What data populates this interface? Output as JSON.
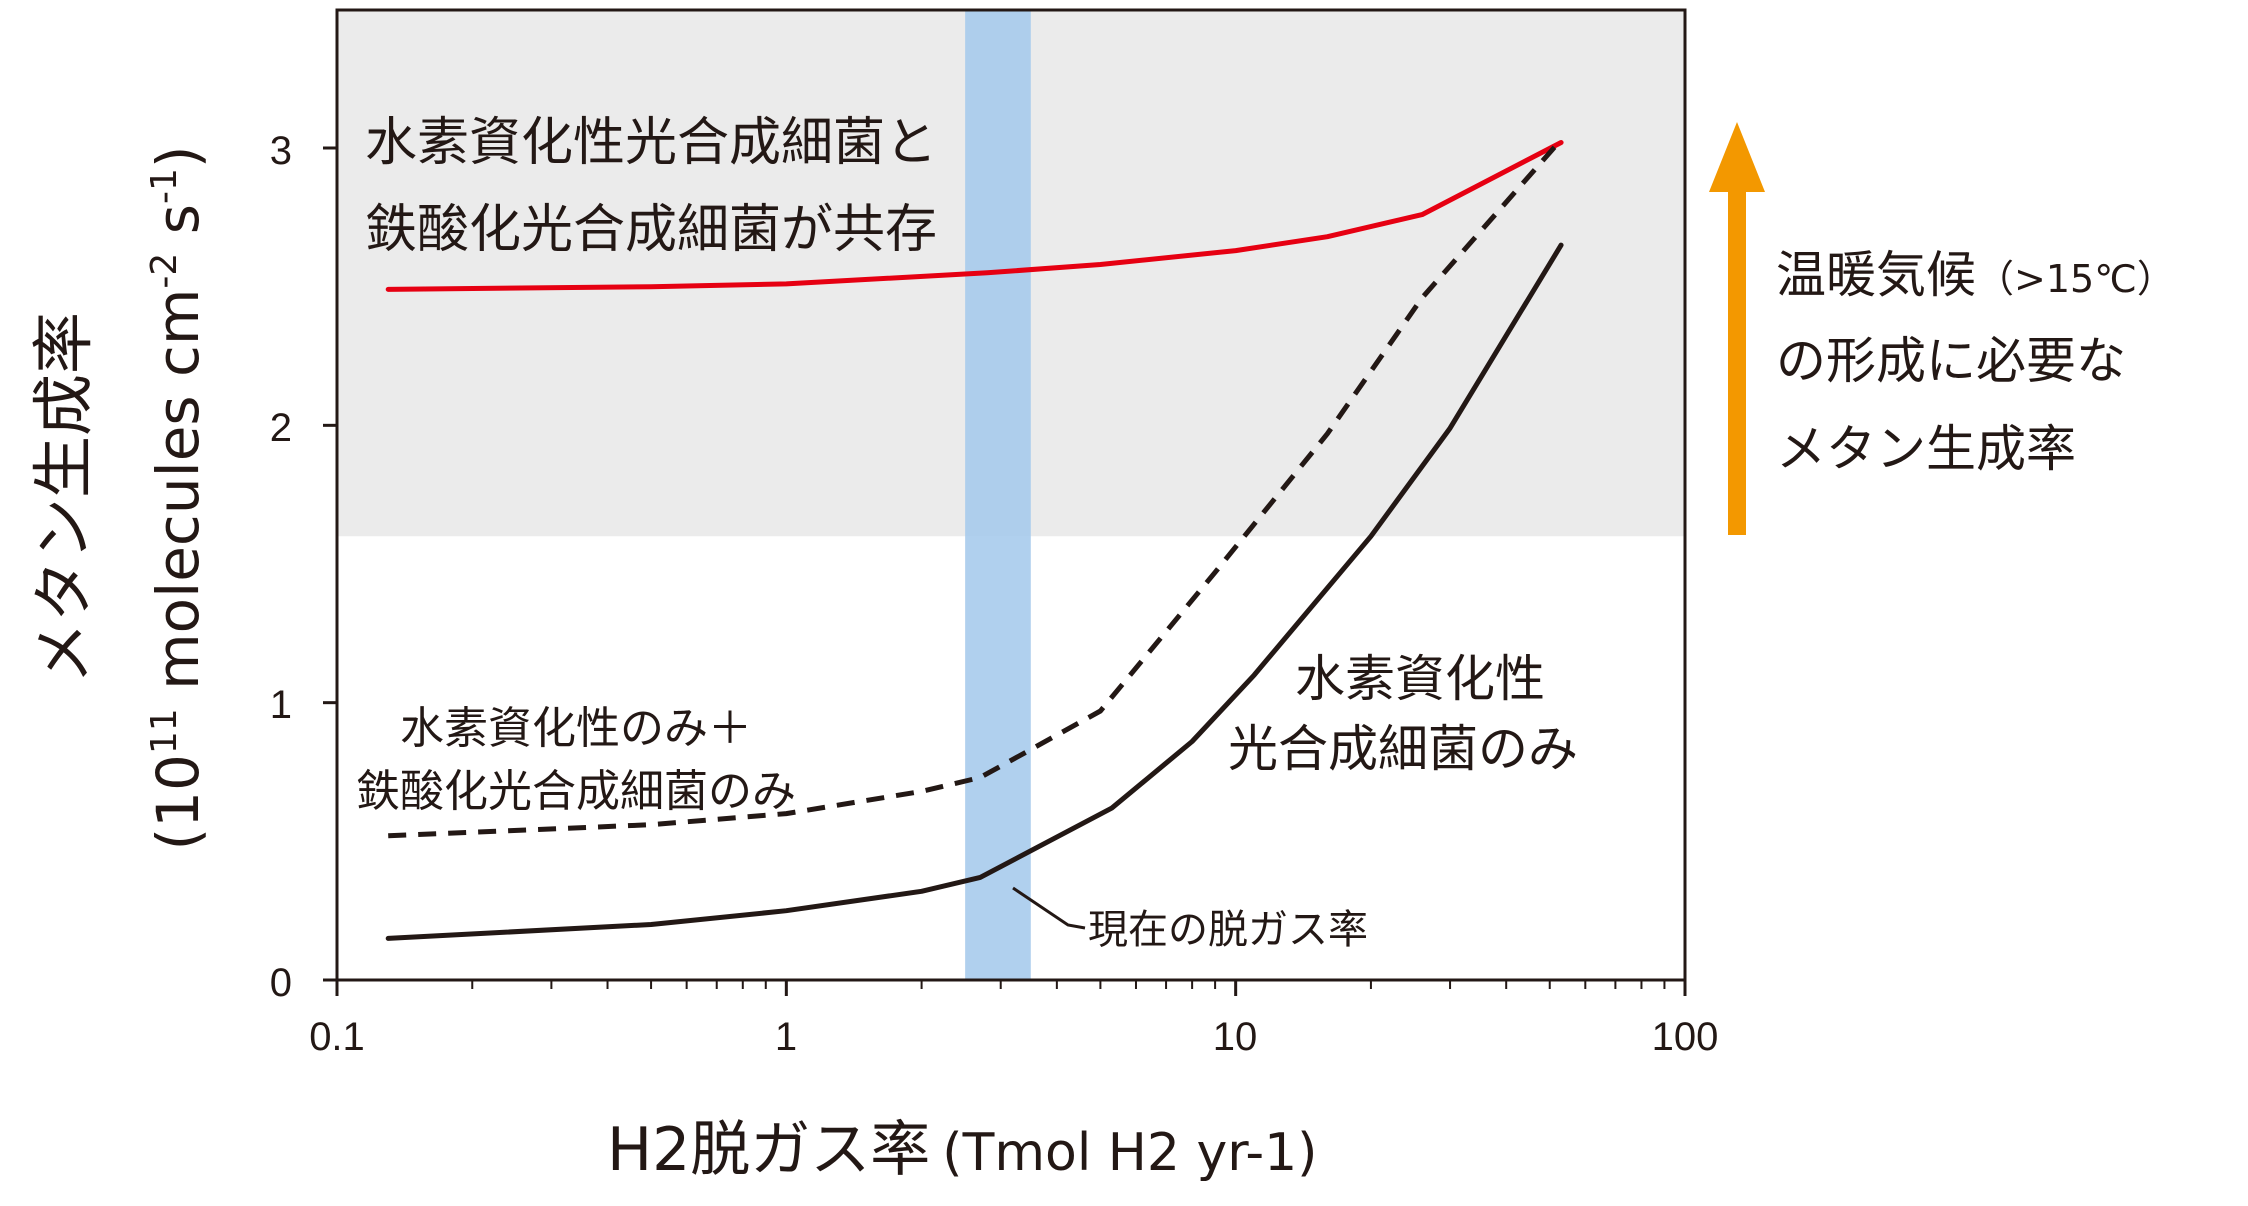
{
  "chart_data": {
    "type": "line",
    "xscale": "log",
    "xlim": [
      0.1,
      100
    ],
    "ylim": [
      0,
      3.5
    ],
    "grid": false,
    "x_ticks": [
      "0.1",
      "1",
      "10",
      "100"
    ],
    "y_ticks": [
      "0",
      "1",
      "2",
      "3"
    ],
    "xlabel": {
      "main": "H2脱ガス率",
      "sub": "(Tmol H2 yr-1)"
    },
    "ylabel": {
      "main": "メタン生成率",
      "unit": "(10",
      "unit_exp1": "11",
      "unit_mid": " molecules cm",
      "unit_exp2": "-2",
      "unit_mid2": " s",
      "unit_exp3": "-1",
      "unit_end": ")"
    },
    "shaded_region": {
      "y_from": 1.6,
      "y_to": 3.5,
      "color": "#ebebeb"
    },
    "current_band": {
      "x_from": 2.5,
      "x_to": 3.5,
      "color": "#a7cbec",
      "label": "現在の脱ガス率"
    },
    "series": [
      {
        "id": "coexist",
        "name_line1": "水素資化性光合成細菌と",
        "name_line2": "鉄酸化光合成細菌が共存",
        "color": "#e60012",
        "style": "solid",
        "points": [
          [
            0.13,
            2.49
          ],
          [
            0.5,
            2.5
          ],
          [
            1.0,
            2.51
          ],
          [
            2.8,
            2.55
          ],
          [
            5.0,
            2.58
          ],
          [
            10.0,
            2.63
          ],
          [
            16.0,
            2.68
          ],
          [
            26.0,
            2.76
          ],
          [
            53.0,
            3.02
          ]
        ]
      },
      {
        "id": "h2-plus-fe",
        "name_line1": "水素資化性のみ＋",
        "name_line2": "鉄酸化光合成細菌のみ",
        "color": "#231815",
        "style": "dashed",
        "points": [
          [
            0.13,
            0.52
          ],
          [
            0.5,
            0.56
          ],
          [
            1.0,
            0.6
          ],
          [
            2.0,
            0.68
          ],
          [
            2.7,
            0.73
          ],
          [
            5.0,
            0.97
          ],
          [
            9.0,
            1.47
          ],
          [
            16.0,
            1.97
          ],
          [
            26.0,
            2.46
          ],
          [
            53.0,
            3.03
          ]
        ]
      },
      {
        "id": "h2-only",
        "name_line1": "水素資化性",
        "name_line2": "光合成細菌のみ",
        "color": "#231815",
        "style": "solid",
        "points": [
          [
            0.13,
            0.15
          ],
          [
            0.5,
            0.2
          ],
          [
            1.0,
            0.25
          ],
          [
            2.0,
            0.32
          ],
          [
            2.7,
            0.37
          ],
          [
            5.3,
            0.62
          ],
          [
            8.0,
            0.86
          ],
          [
            11.0,
            1.1
          ],
          [
            20.0,
            1.6
          ],
          [
            30.0,
            1.99
          ],
          [
            53.0,
            2.65
          ]
        ]
      }
    ],
    "side_note": {
      "line1": "温暖気候",
      "line1_paren": "（>15℃）",
      "line2": "の形成に必要な",
      "line3": "メタン生成率",
      "color": "#f39800"
    }
  }
}
